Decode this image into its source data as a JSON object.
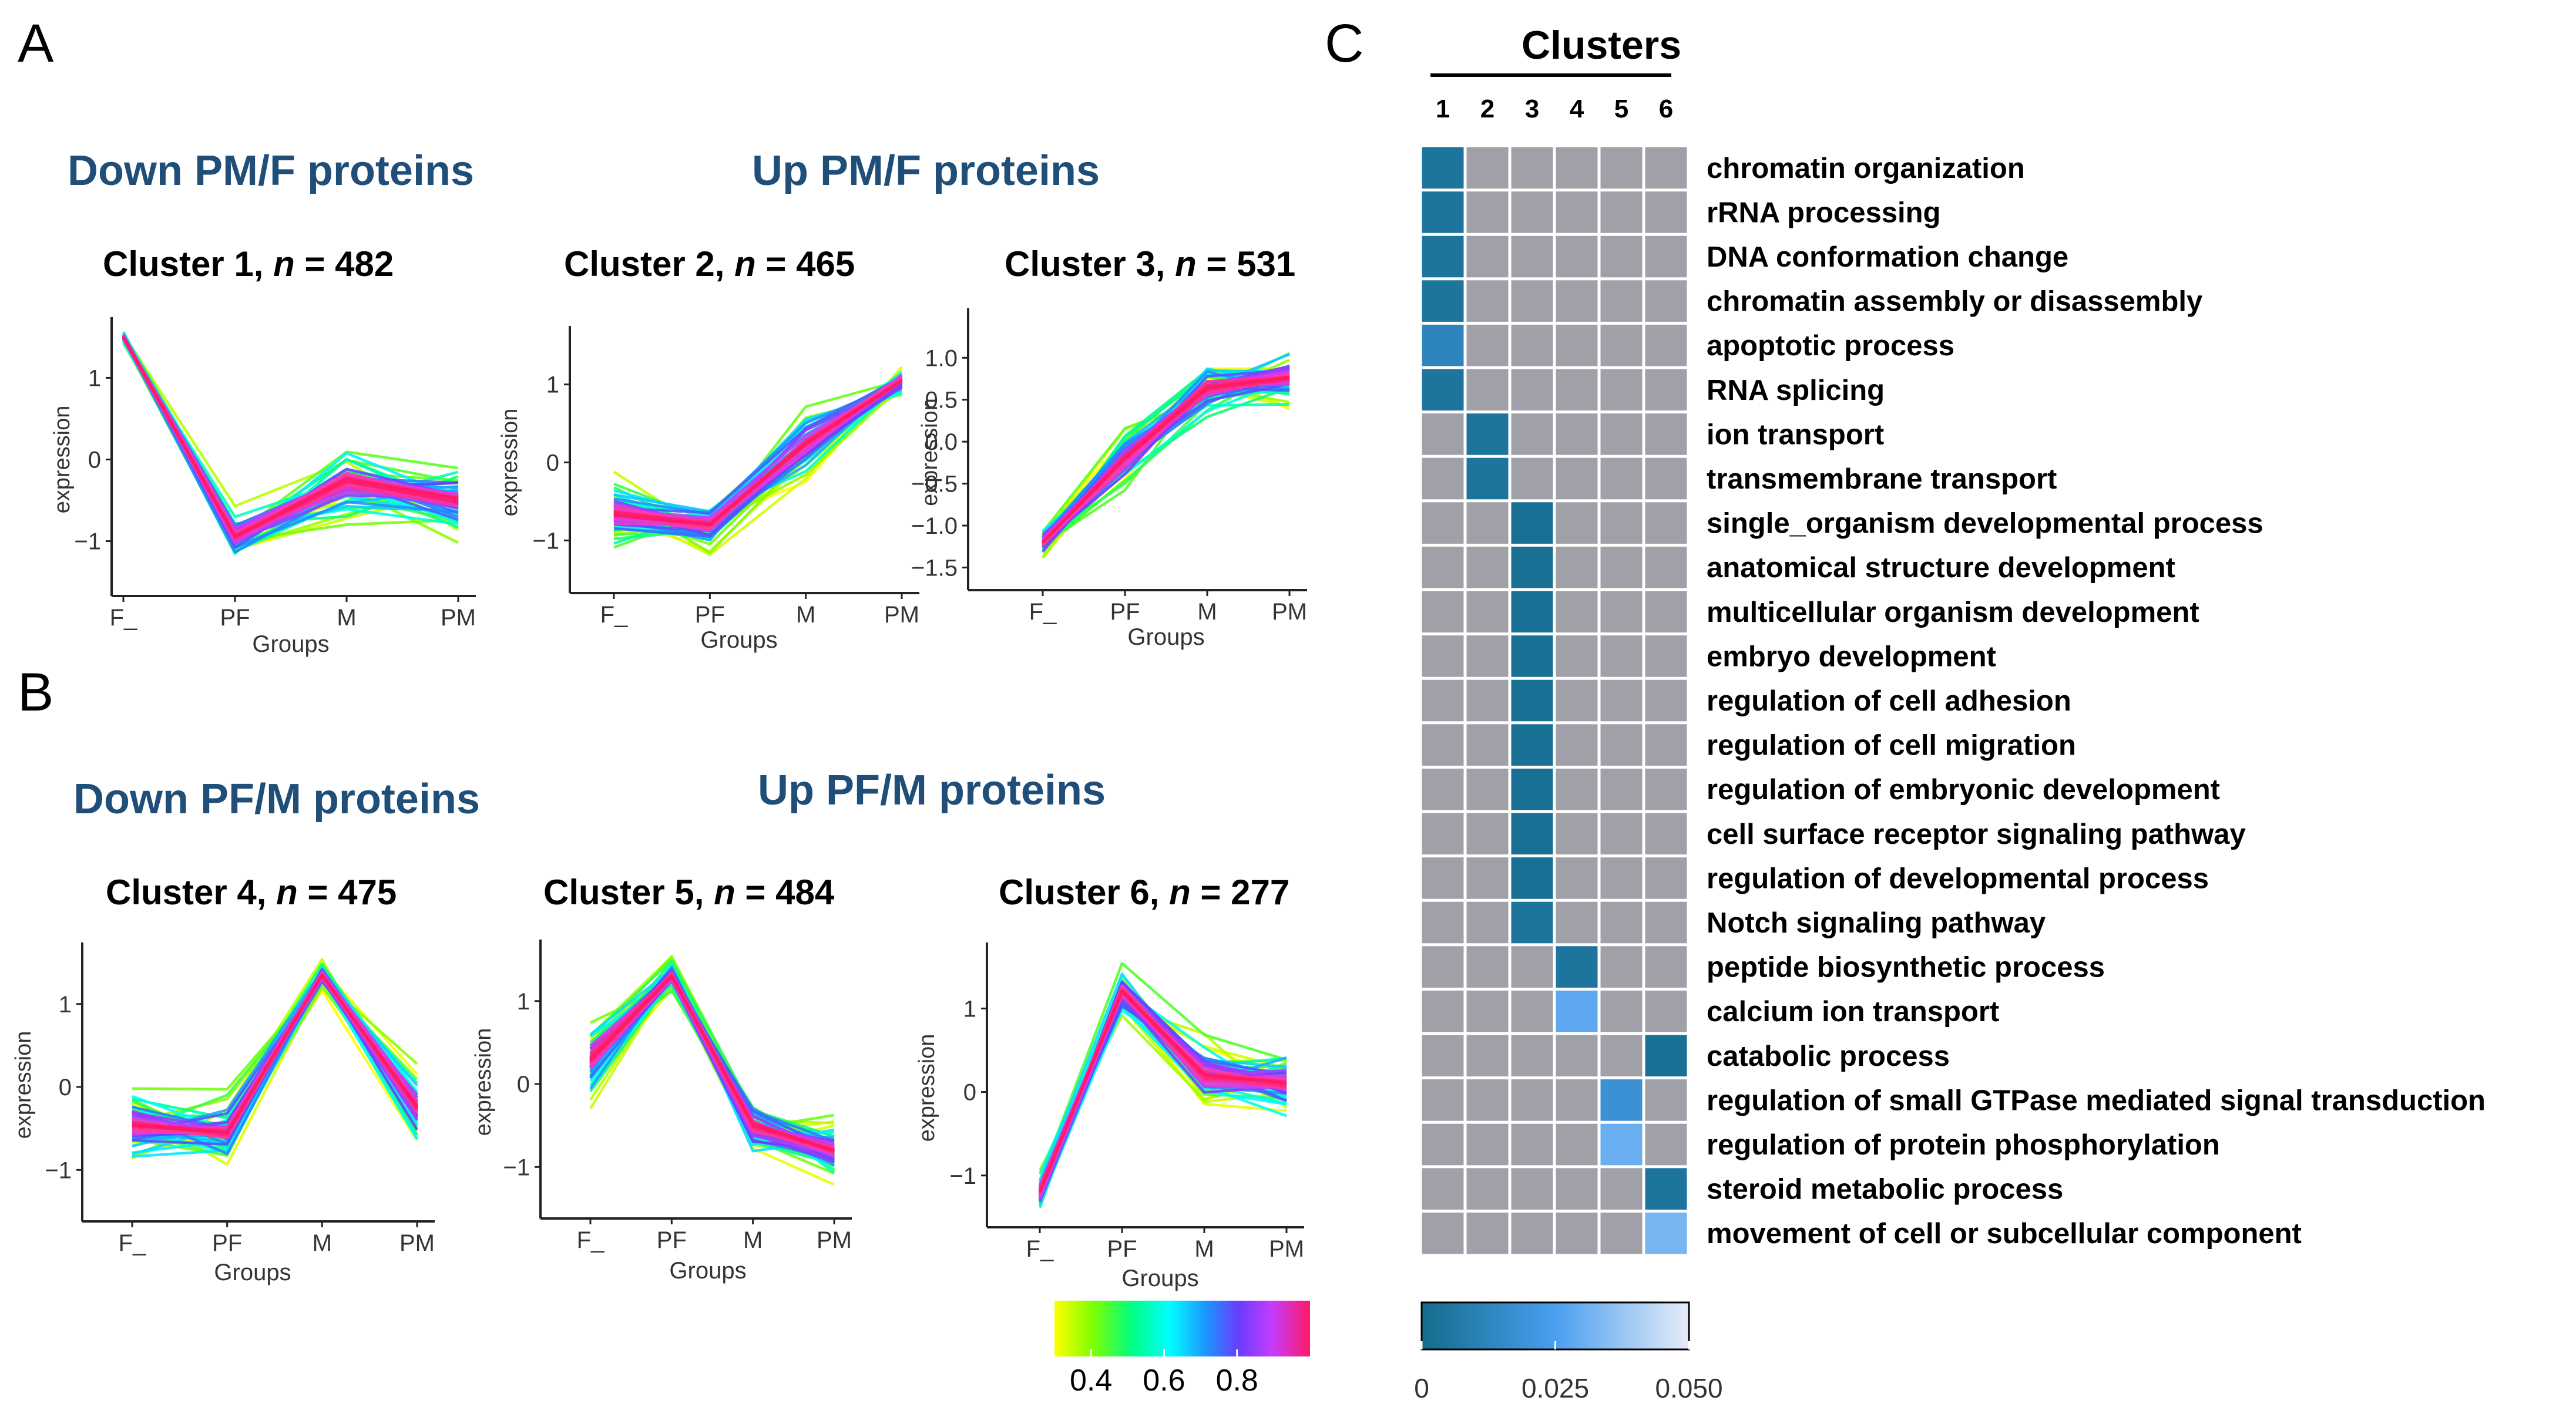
{
  "panels": {
    "A": "A",
    "B": "B",
    "C": "C"
  },
  "headings": {
    "down_pmf": "Down PM/F proteins",
    "up_pmf": "Up PM/F proteins",
    "down_pfm": "Down PF/M proteins",
    "up_pfm": "Up PF/M proteins"
  },
  "colors": {
    "heading": "#1f4e79",
    "line_palette": [
      "#ffff00",
      "#7fff00",
      "#00ff7f",
      "#00ffff",
      "#1e90ff",
      "#6a3dff",
      "#c43cff",
      "#ff3ca0",
      "#ff1a66"
    ],
    "heat_low": "#146c8c",
    "heat_mid": "#4a9ff0",
    "heat_high": "#e6ecf6",
    "heat_empty": "#a0a0a8"
  },
  "color_scale": {
    "ticks": [
      "0.4",
      "0.6",
      "0.8"
    ],
    "min": 0.3,
    "max": 1.0
  },
  "heat_scale": {
    "ticks": [
      "0",
      "0.025",
      "0.050"
    ],
    "min": 0,
    "max": 0.05
  },
  "chart_data": [
    {
      "type": "line",
      "title_prefix": "Cluster 1, ",
      "n_label": "n",
      "n_value": " = 482",
      "xlabel": "Groups",
      "ylabel": "expression",
      "categories": [
        "F_",
        "PF",
        "M",
        "PM"
      ],
      "yticks": [
        "1",
        "0",
        "−1"
      ],
      "ytick_values": [
        1,
        0,
        -1
      ],
      "ylim": [
        -1.6,
        1.6
      ],
      "profile": [
        1.5,
        -0.95,
        -0.25,
        -0.5
      ],
      "spread": [
        0.08,
        0.3,
        0.5,
        0.45
      ]
    },
    {
      "type": "line",
      "title_prefix": "Cluster 2, ",
      "n_label": "n",
      "n_value": " = 465",
      "xlabel": "Groups",
      "ylabel": "expression",
      "categories": [
        "F_",
        "PF",
        "M",
        "PM"
      ],
      "yticks": [
        "1",
        "0",
        "−1"
      ],
      "ytick_values": [
        1,
        0,
        -1
      ],
      "ylim": [
        -1.6,
        1.6
      ],
      "profile": [
        -0.65,
        -0.8,
        0.25,
        1.05
      ],
      "spread": [
        0.45,
        0.35,
        0.45,
        0.25
      ]
    },
    {
      "type": "line",
      "title_prefix": "Cluster 3, ",
      "n_label": "n",
      "n_value": " = 531",
      "xlabel": "Groups",
      "ylabel": "expression",
      "categories": [
        "F_",
        "PF",
        "M",
        "PM"
      ],
      "yticks": [
        "1.0",
        "0.5",
        "0.0",
        "−0.5",
        "−1.0",
        "−1.5"
      ],
      "ytick_values": [
        1,
        0.5,
        0,
        -0.5,
        -1,
        -1.5
      ],
      "ylim": [
        -1.7,
        1.45
      ],
      "profile": [
        -1.2,
        -0.2,
        0.65,
        0.75
      ],
      "spread": [
        0.2,
        0.4,
        0.35,
        0.35
      ]
    },
    {
      "type": "line",
      "title_prefix": "Cluster 4, ",
      "n_label": "n",
      "n_value": " = 475",
      "xlabel": "Groups",
      "ylabel": "expression",
      "categories": [
        "F_",
        "PF",
        "M",
        "PM"
      ],
      "yticks": [
        "1",
        "0",
        "−1"
      ],
      "ytick_values": [
        1,
        0,
        -1
      ],
      "ylim": [
        -1.55,
        1.6
      ],
      "profile": [
        -0.45,
        -0.55,
        1.35,
        -0.25
      ],
      "spread": [
        0.5,
        0.5,
        0.15,
        0.5
      ]
    },
    {
      "type": "line",
      "title_prefix": "Cluster 5, ",
      "n_label": "n",
      "n_value": " = 484",
      "xlabel": "Groups",
      "ylabel": "expression",
      "categories": [
        "F_",
        "PF",
        "M",
        "PM"
      ],
      "yticks": [
        "1",
        "0",
        "−1"
      ],
      "ytick_values": [
        1,
        0,
        -1
      ],
      "ylim": [
        -1.55,
        1.6
      ],
      "profile": [
        0.3,
        1.3,
        -0.5,
        -0.8
      ],
      "spread": [
        0.55,
        0.2,
        0.4,
        0.35
      ]
    },
    {
      "type": "line",
      "title_prefix": "Cluster 6, ",
      "n_label": "n",
      "n_value": " = 277",
      "xlabel": "Groups",
      "ylabel": "expression",
      "categories": [
        "F_",
        "PF",
        "M",
        "PM"
      ],
      "yticks": [
        "1",
        "0",
        "−1"
      ],
      "ytick_values": [
        1,
        0,
        -1
      ],
      "ylim": [
        -1.55,
        1.65
      ],
      "profile": [
        -1.2,
        1.2,
        0.2,
        0.1
      ],
      "spread": [
        0.25,
        0.3,
        0.45,
        0.45
      ]
    },
    {
      "type": "heatmap",
      "title": "Clusters",
      "columns": [
        "1",
        "2",
        "3",
        "4",
        "5",
        "6"
      ],
      "rows": [
        {
          "term": "chromatin organization",
          "cluster": 1,
          "value": 0.004
        },
        {
          "term": "rRNA processing",
          "cluster": 1,
          "value": 0.004
        },
        {
          "term": "DNA conformation change",
          "cluster": 1,
          "value": 0.004
        },
        {
          "term": "chromatin assembly or disassembly",
          "cluster": 1,
          "value": 0.004
        },
        {
          "term": "apoptotic process",
          "cluster": 1,
          "value": 0.012
        },
        {
          "term": "RNA splicing",
          "cluster": 1,
          "value": 0.004
        },
        {
          "term": "ion transport",
          "cluster": 2,
          "value": 0.004
        },
        {
          "term": "transmembrane transport",
          "cluster": 2,
          "value": 0.004
        },
        {
          "term": "single_organism developmental process",
          "cluster": 3,
          "value": 0.002
        },
        {
          "term": "anatomical structure development",
          "cluster": 3,
          "value": 0.002
        },
        {
          "term": "multicellular organism development",
          "cluster": 3,
          "value": 0.002
        },
        {
          "term": "embryo development",
          "cluster": 3,
          "value": 0.002
        },
        {
          "term": "regulation of cell adhesion",
          "cluster": 3,
          "value": 0.002
        },
        {
          "term": "regulation of cell migration",
          "cluster": 3,
          "value": 0.002
        },
        {
          "term": "regulation of embryonic development",
          "cluster": 3,
          "value": 0.002
        },
        {
          "term": "cell surface receptor signaling pathway",
          "cluster": 3,
          "value": 0.002
        },
        {
          "term": "regulation of developmental process",
          "cluster": 3,
          "value": 0.002
        },
        {
          "term": "Notch signaling pathway",
          "cluster": 3,
          "value": 0.004
        },
        {
          "term": "peptide biosynthetic process",
          "cluster": 4,
          "value": 0.004
        },
        {
          "term": "calcium ion transport",
          "cluster": 4,
          "value": 0.028
        },
        {
          "term": "catabolic process",
          "cluster": 6,
          "value": 0.002
        },
        {
          "term": "regulation of small GTPase mediated signal transduction",
          "cluster": 5,
          "value": 0.018
        },
        {
          "term": "regulation of protein phosphorylation",
          "cluster": 5,
          "value": 0.03
        },
        {
          "term": "steroid metabolic process",
          "cluster": 6,
          "value": 0.004
        },
        {
          "term": "movement of cell or subcellular component",
          "cluster": 6,
          "value": 0.032
        }
      ]
    }
  ]
}
